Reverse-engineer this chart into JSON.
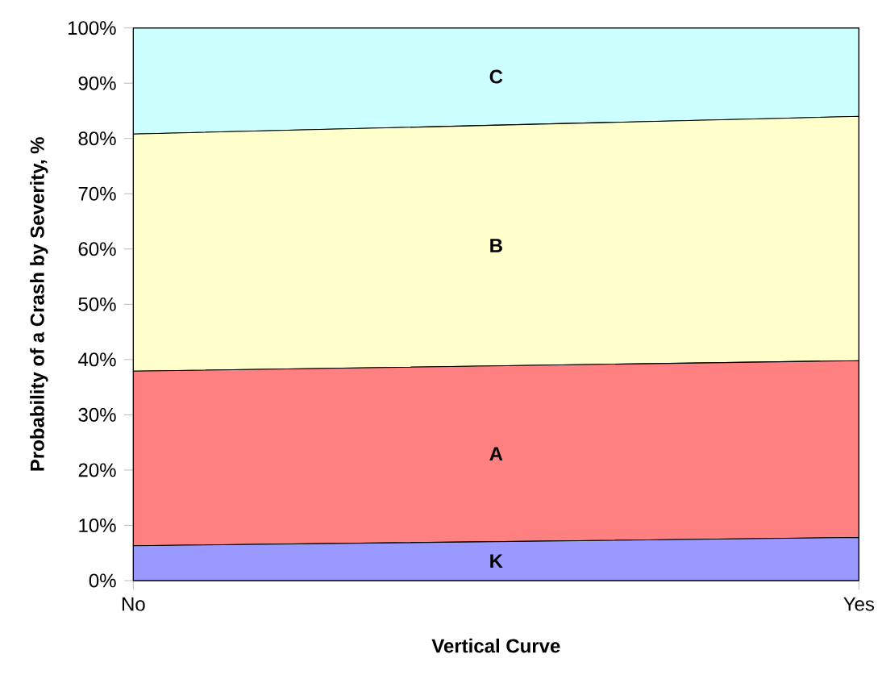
{
  "chart_data": {
    "type": "area",
    "stacked": true,
    "xlabel": "Vertical Curve",
    "ylabel": "Probability of a Crash by Severity, %",
    "categories": [
      "No",
      "Yes"
    ],
    "series": [
      {
        "name": "K",
        "color": "#9999ff",
        "values": [
          6.3,
          7.8
        ]
      },
      {
        "name": "A",
        "color": "#ff8080",
        "values": [
          31.6,
          32.0
        ]
      },
      {
        "name": "B",
        "color": "#ffffcc",
        "values": [
          42.9,
          44.2
        ]
      },
      {
        "name": "C",
        "color": "#ccffff",
        "values": [
          19.2,
          16.0
        ]
      }
    ],
    "ylim": [
      0,
      100
    ],
    "yticks": [
      {
        "value": 0,
        "label": "0%"
      },
      {
        "value": 10,
        "label": "10%"
      },
      {
        "value": 20,
        "label": "20%"
      },
      {
        "value": 30,
        "label": "30%"
      },
      {
        "value": 40,
        "label": "40%"
      },
      {
        "value": 50,
        "label": "50%"
      },
      {
        "value": 60,
        "label": "60%"
      },
      {
        "value": 70,
        "label": "70%"
      },
      {
        "value": 80,
        "label": "80%"
      },
      {
        "value": 90,
        "label": "90%"
      },
      {
        "value": 100,
        "label": "100%"
      }
    ]
  }
}
